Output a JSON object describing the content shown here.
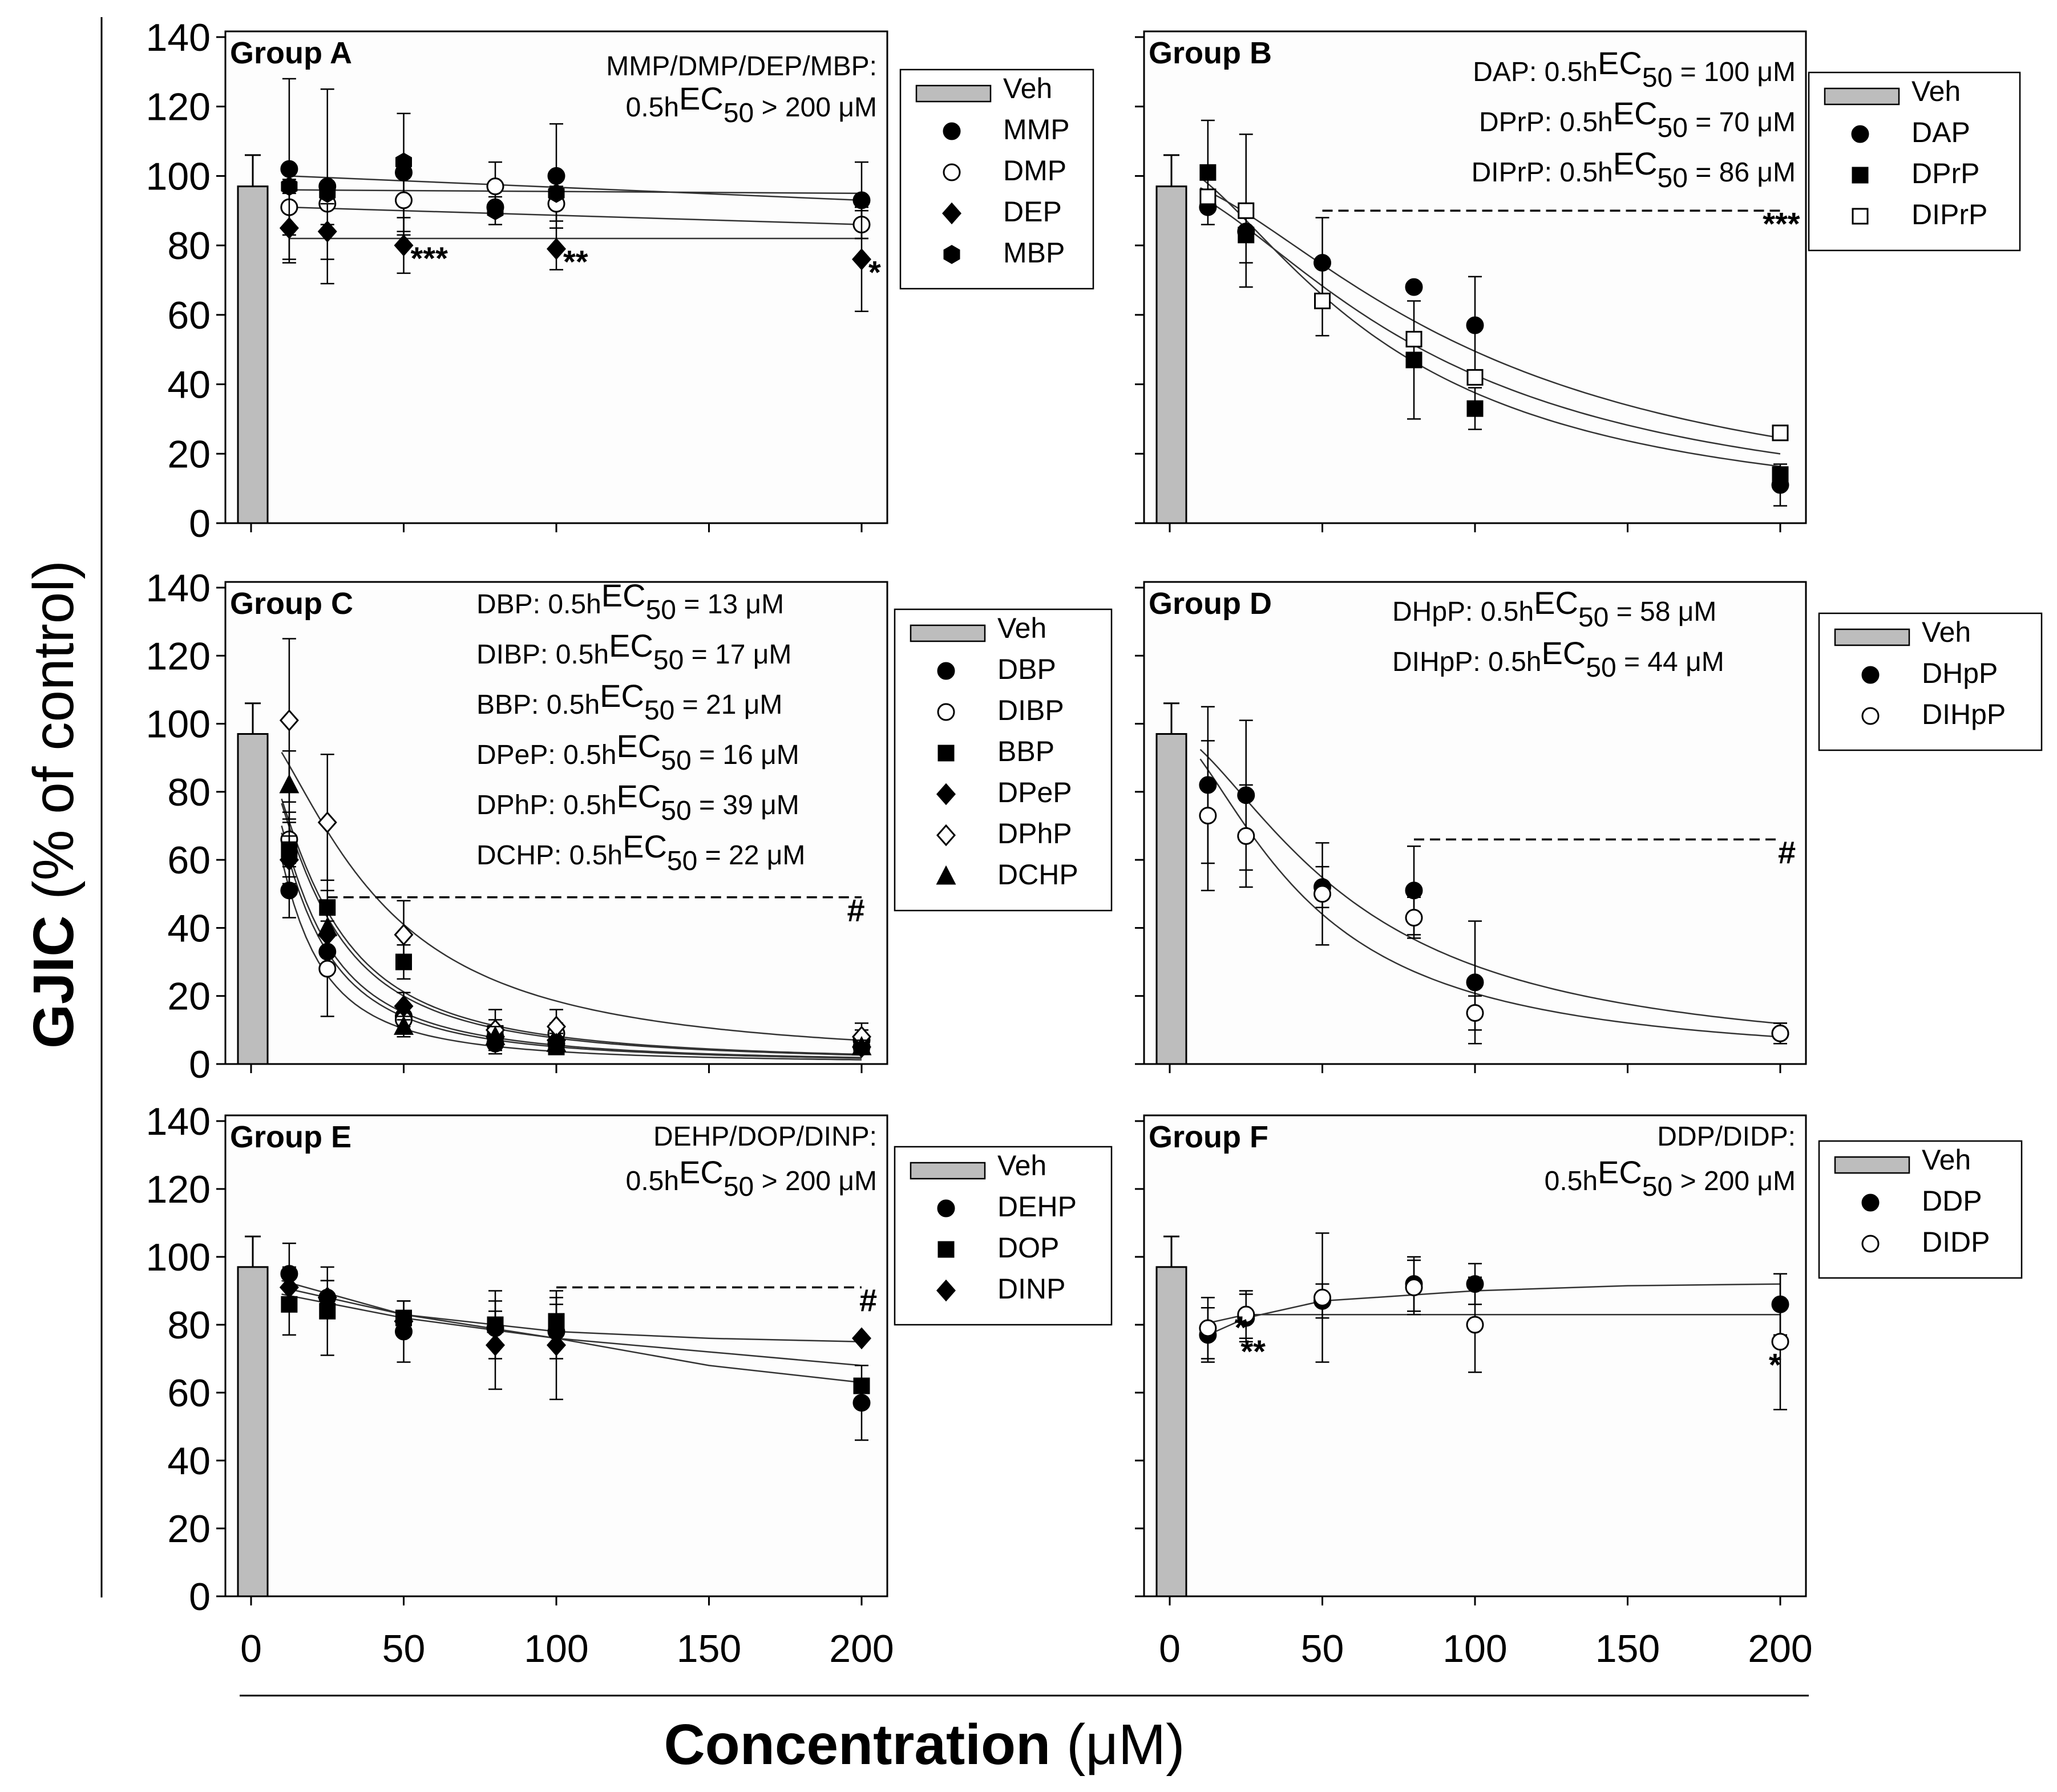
{
  "figure": {
    "y_label_bold": "GJIC",
    "y_label_rest": " (% of control)",
    "x_label_bold": "Concentration",
    "x_label_rest": " (μM)"
  },
  "chart_data": [
    {
      "type": "scatter",
      "title": "Group A",
      "xlim": [
        0,
        200
      ],
      "ylim": [
        0,
        140
      ],
      "x_ticks": [
        "0",
        "50",
        "100",
        "150",
        "200"
      ],
      "y_ticks": [
        "0",
        "20",
        "40",
        "60",
        "80",
        "100",
        "120",
        "140"
      ],
      "show_x_ticks": false,
      "show_y_ticks": true,
      "vehicle": {
        "name": "Veh",
        "value": 97,
        "err": 9
      },
      "annotation": [
        {
          "main": "MMP/DMP/DEP/MBP:"
        },
        {
          "pre": "0.5h",
          "sub": "EC",
          "sub2": "50",
          "post": " > 200 μM"
        }
      ],
      "series": [
        {
          "name": "MMP",
          "marker": "circle-filled",
          "x": [
            12.5,
            25,
            50,
            80,
            100,
            200
          ],
          "y": [
            102,
            97,
            101,
            91,
            100,
            93
          ],
          "err": [
            26,
            28,
            17,
            0,
            15,
            11
          ],
          "fit": [
            100,
            93
          ]
        },
        {
          "name": "DMP",
          "marker": "circle-open",
          "x": [
            12.5,
            25,
            50,
            80,
            100,
            200
          ],
          "y": [
            91,
            92,
            93,
            97,
            92,
            86
          ],
          "err": [
            8,
            6,
            10,
            7,
            5,
            4
          ],
          "fit": [
            91,
            86
          ]
        },
        {
          "name": "DEP",
          "marker": "diamond-filled",
          "x": [
            12.5,
            25,
            50,
            100,
            200
          ],
          "y": [
            85,
            84,
            80,
            79,
            76
          ],
          "err": [
            10,
            8,
            8,
            6,
            15
          ],
          "fit": [
            82,
            82
          ]
        },
        {
          "name": "MBP",
          "marker": "hexagon-filled",
          "x": [
            12.5,
            25,
            50,
            80,
            100
          ],
          "y": [
            97,
            95,
            104,
            90,
            95
          ],
          "err": [
            0,
            0,
            0,
            4,
            0
          ],
          "fit": [
            96,
            95
          ]
        }
      ],
      "significance": [
        {
          "x": 50,
          "y": 80,
          "label": "***"
        },
        {
          "x": 100,
          "y": 79,
          "label": "**"
        },
        {
          "x": 200,
          "y": 76,
          "label": "*"
        }
      ]
    },
    {
      "type": "scatter",
      "title": "Group B",
      "xlim": [
        0,
        200
      ],
      "ylim": [
        0,
        140
      ],
      "x_ticks": [
        "0",
        "50",
        "100",
        "150",
        "200"
      ],
      "y_ticks": [
        "0",
        "20",
        "40",
        "60",
        "80",
        "100",
        "120",
        "140"
      ],
      "show_x_ticks": false,
      "show_y_ticks": false,
      "vehicle": {
        "name": "Veh",
        "value": 97,
        "err": 9
      },
      "annotation": [
        {
          "pre": "DAP: 0.5h",
          "sub": "EC",
          "sub2": "50",
          "post": " = 100 μM"
        },
        {
          "pre": "DPrP: 0.5h",
          "sub": "EC",
          "sub2": "50",
          "post": " =  70 μM"
        },
        {
          "pre": "DIPrP: 0.5h",
          "sub": "EC",
          "sub2": "50",
          "post": " =  86 μM"
        }
      ],
      "series": [
        {
          "name": "DAP",
          "marker": "circle-filled",
          "x": [
            12.5,
            25,
            50,
            80,
            100,
            200
          ],
          "y": [
            91,
            84,
            75,
            68,
            57,
            11
          ],
          "err": [
            0,
            0,
            13,
            0,
            14,
            6
          ],
          "ec50": 100,
          "top": 99
        },
        {
          "name": "DPrP",
          "marker": "square-filled",
          "x": [
            12.5,
            25,
            50,
            80,
            100,
            200
          ],
          "y": [
            101,
            83,
            64,
            47,
            33,
            14
          ],
          "err": [
            15,
            8,
            10,
            17,
            6,
            0
          ],
          "ec50": 70,
          "top": 104
        },
        {
          "name": "DIPrP",
          "marker": "square-open",
          "x": [
            12.5,
            25,
            50,
            80,
            100,
            200
          ],
          "y": [
            94,
            90,
            64,
            53,
            42,
            26
          ],
          "err": [
            0,
            22,
            0,
            0,
            0,
            0
          ],
          "ec50": 86,
          "top": 97
        }
      ],
      "dashed_line": {
        "y": 90,
        "from_x": 50,
        "to_x": 200
      },
      "significance": [
        {
          "x": 192,
          "y": 90,
          "label": "***"
        }
      ]
    },
    {
      "type": "scatter",
      "title": "Group C",
      "xlim": [
        0,
        200
      ],
      "ylim": [
        0,
        140
      ],
      "x_ticks": [
        "0",
        "50",
        "100",
        "150",
        "200"
      ],
      "y_ticks": [
        "0",
        "20",
        "40",
        "60",
        "80",
        "100",
        "120",
        "140"
      ],
      "show_x_ticks": false,
      "show_y_ticks": true,
      "vehicle": {
        "name": "Veh",
        "value": 97,
        "err": 9
      },
      "annotation": [
        {
          "pre": "DBP: 0.5h",
          "sub": "EC",
          "sub2": "50",
          "post": " = 13 μM"
        },
        {
          "pre": "DIBP: 0.5h",
          "sub": "EC",
          "sub2": "50",
          "post": " =  17 μM"
        },
        {
          "pre": "BBP: 0.5h",
          "sub": "EC",
          "sub2": "50",
          "post": " =  21 μM"
        },
        {
          "pre": "DPeP: 0.5h",
          "sub": "EC",
          "sub2": "50",
          "post": " =  16 μM"
        },
        {
          "pre": "DPhP: 0.5h",
          "sub": "EC",
          "sub2": "50",
          "post": " =  39 μM"
        },
        {
          "pre": "DCHP: 0.5h",
          "sub": "EC",
          "sub2": "50",
          "post": " =  22 μM"
        }
      ],
      "series": [
        {
          "name": "DBP",
          "marker": "circle-filled",
          "x": [
            12.5,
            25,
            50,
            80,
            100,
            200
          ],
          "y": [
            51,
            33,
            14,
            6,
            6,
            5
          ],
          "err": [
            8,
            6,
            3,
            3,
            2,
            2
          ],
          "ec50": 13,
          "top": 100
        },
        {
          "name": "DIBP",
          "marker": "circle-open",
          "x": [
            12.5,
            25,
            50,
            80,
            100,
            200
          ],
          "y": [
            66,
            28,
            13,
            8,
            9,
            7
          ],
          "err": [
            8,
            14,
            4,
            3,
            3,
            3
          ],
          "ec50": 17,
          "top": 100
        },
        {
          "name": "BBP",
          "marker": "square-filled",
          "x": [
            12.5,
            25,
            50,
            80,
            100,
            200
          ],
          "y": [
            63,
            46,
            30,
            9,
            5,
            6
          ],
          "err": [
            8,
            8,
            5,
            4,
            2,
            2
          ],
          "ec50": 21,
          "top": 100
        },
        {
          "name": "DPeP",
          "marker": "diamond-filled",
          "x": [
            12.5,
            25,
            50,
            80,
            100,
            200
          ],
          "y": [
            60,
            38,
            17,
            8,
            7,
            5
          ],
          "err": [
            7,
            6,
            4,
            3,
            2,
            2
          ],
          "ec50": 16,
          "top": 100
        },
        {
          "name": "DPhP",
          "marker": "diamond-open",
          "x": [
            12.5,
            25,
            50,
            80,
            100,
            200
          ],
          "y": [
            101,
            71,
            38,
            10,
            11,
            8
          ],
          "err": [
            24,
            20,
            10,
            6,
            5,
            4
          ],
          "ec50": 39,
          "top": 102
        },
        {
          "name": "DCHP",
          "marker": "triangle-filled",
          "x": [
            12.5,
            25,
            50,
            80,
            100,
            200
          ],
          "y": [
            82,
            40,
            11,
            8,
            6,
            5
          ],
          "err": [
            10,
            8,
            3,
            3,
            2,
            2
          ],
          "ec50": 22,
          "top": 100
        }
      ],
      "dashed_line": {
        "y": 49,
        "from_x": 25,
        "to_x": 200
      },
      "significance": [
        {
          "x": 193,
          "y": 49,
          "label": "#"
        }
      ]
    },
    {
      "type": "scatter",
      "title": "Group D",
      "xlim": [
        0,
        200
      ],
      "ylim": [
        0,
        140
      ],
      "x_ticks": [
        "0",
        "50",
        "100",
        "150",
        "200"
      ],
      "y_ticks": [
        "0",
        "20",
        "40",
        "60",
        "80",
        "100",
        "120",
        "140"
      ],
      "show_x_ticks": false,
      "show_y_ticks": false,
      "vehicle": {
        "name": "Veh",
        "value": 97,
        "err": 9
      },
      "annotation": [
        {
          "pre": "DHpP: 0.5h",
          "sub": "EC",
          "sub2": "50",
          "post": " = 58 μM"
        },
        {
          "pre": "DIHpP: 0.5h",
          "sub": "EC",
          "sub2": "50",
          "post": " =  44 μM"
        }
      ],
      "series": [
        {
          "name": "DHpP",
          "marker": "circle-filled",
          "x": [
            12.5,
            25,
            50,
            80,
            100,
            200
          ],
          "y": [
            82,
            79,
            52,
            51,
            24,
            9
          ],
          "err": [
            23,
            22,
            6,
            13,
            18,
            3
          ],
          "ec50": 58,
          "top": 98
        },
        {
          "name": "DIHpP",
          "marker": "circle-open",
          "x": [
            12.5,
            25,
            50,
            80,
            100,
            200
          ],
          "y": [
            73,
            67,
            50,
            43,
            15,
            9
          ],
          "err": [
            22,
            15,
            15,
            6,
            5,
            3
          ],
          "ec50": 44,
          "top": 98
        }
      ],
      "dashed_line": {
        "y": 66,
        "from_x": 80,
        "to_x": 200
      },
      "significance": [
        {
          "x": 197,
          "y": 66,
          "label": "#"
        }
      ]
    },
    {
      "type": "scatter",
      "title": "Group E",
      "xlim": [
        0,
        200
      ],
      "ylim": [
        0,
        140
      ],
      "x_ticks": [
        "0",
        "50",
        "100",
        "150",
        "200"
      ],
      "y_ticks": [
        "0",
        "20",
        "40",
        "60",
        "80",
        "100",
        "120",
        "140"
      ],
      "show_x_ticks": true,
      "show_y_ticks": true,
      "vehicle": {
        "name": "Veh",
        "value": 97,
        "err": 9
      },
      "annotation": [
        {
          "main": "DEHP/DOP/DINP:"
        },
        {
          "pre": "0.5h",
          "sub": "EC",
          "sub2": "50",
          "post": " > 200 μM"
        }
      ],
      "series": [
        {
          "name": "DEHP",
          "marker": "circle-filled",
          "x": [
            12.5,
            25,
            50,
            80,
            100,
            200
          ],
          "y": [
            95,
            88,
            78,
            79,
            78,
            57
          ],
          "err": [
            9,
            5,
            9,
            5,
            8,
            11
          ],
          "fit_line": [
            [
              10,
              93
            ],
            [
              50,
              83
            ],
            [
              100,
              76
            ],
            [
              150,
              68
            ],
            [
              200,
              63
            ]
          ]
        },
        {
          "name": "DOP",
          "marker": "square-filled",
          "x": [
            12.5,
            25,
            50,
            80,
            100,
            200
          ],
          "y": [
            86,
            84,
            82,
            80,
            81,
            62
          ],
          "err": [
            9,
            13,
            5,
            10,
            7,
            0
          ],
          "fit_line": [
            [
              10,
              89
            ],
            [
              50,
              82
            ],
            [
              100,
              76
            ],
            [
              150,
              72
            ],
            [
              200,
              68
            ]
          ]
        },
        {
          "name": "DINP",
          "marker": "diamond-filled",
          "x": [
            12.5,
            25,
            50,
            80,
            100,
            200
          ],
          "y": [
            91,
            88,
            81,
            74,
            74,
            76
          ],
          "err": [
            6,
            5,
            3,
            13,
            16,
            0
          ],
          "fit_line": [
            [
              10,
              91
            ],
            [
              50,
              83
            ],
            [
              100,
              78
            ],
            [
              150,
              76
            ],
            [
              200,
              75
            ]
          ]
        }
      ],
      "dashed_line": {
        "y": 91,
        "from_x": 100,
        "to_x": 200
      },
      "significance": [
        {
          "x": 197,
          "y": 91,
          "label": "#"
        }
      ]
    },
    {
      "type": "scatter",
      "title": "Group F",
      "xlim": [
        0,
        200
      ],
      "ylim": [
        0,
        140
      ],
      "x_ticks": [
        "0",
        "50",
        "100",
        "150",
        "200"
      ],
      "y_ticks": [
        "0",
        "20",
        "40",
        "60",
        "80",
        "100",
        "120",
        "140"
      ],
      "show_x_ticks": true,
      "show_y_ticks": false,
      "vehicle": {
        "name": "Veh",
        "value": 97,
        "err": 9
      },
      "annotation": [
        {
          "main": "DDP/DIDP:"
        },
        {
          "pre": "0.5h",
          "sub": "EC",
          "sub2": "50",
          "post": " > 200 μM"
        }
      ],
      "series": [
        {
          "name": "DDP",
          "marker": "circle-filled",
          "x": [
            12.5,
            25,
            50,
            80,
            100,
            200
          ],
          "y": [
            77,
            82,
            87,
            92,
            92,
            86
          ],
          "err": [
            8,
            7,
            5,
            8,
            6,
            9
          ],
          "fit_line": [
            [
              10,
              76
            ],
            [
              25,
              82
            ],
            [
              50,
              87
            ],
            [
              100,
              90
            ],
            [
              150,
              91.5
            ],
            [
              200,
              92
            ]
          ]
        },
        {
          "name": "DIDP",
          "marker": "circle-open",
          "x": [
            12.5,
            25,
            50,
            80,
            100,
            200
          ],
          "y": [
            79,
            83,
            88,
            91,
            80,
            75
          ],
          "err": [
            9,
            7,
            19,
            8,
            14,
            20
          ],
          "fit_line": [
            [
              10,
              80
            ],
            [
              25,
              83
            ],
            [
              50,
              83
            ],
            [
              100,
              83
            ],
            [
              150,
              83
            ],
            [
              200,
              83
            ]
          ]
        }
      ],
      "significance": [
        {
          "x": 19,
          "y": 83,
          "label": "*"
        },
        {
          "x": 21,
          "y": 76,
          "label": "**"
        },
        {
          "x": 194,
          "y": 72,
          "label": "*"
        }
      ]
    }
  ]
}
